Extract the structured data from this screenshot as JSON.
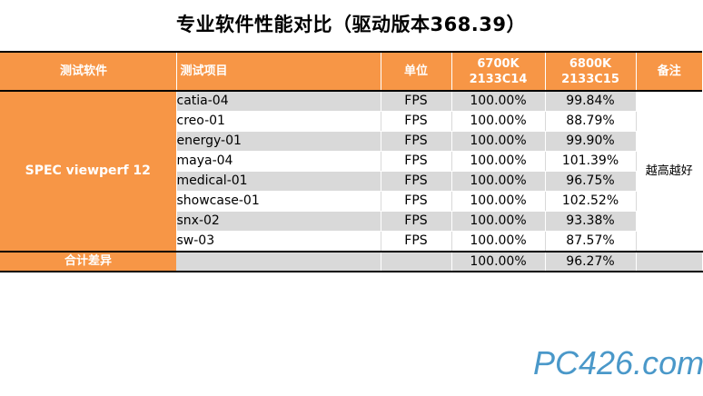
{
  "title": "专业软件性能对比（驱动版本368.39）",
  "table": {
    "headers": {
      "software": "测试软件",
      "item": "测试项目",
      "unit": "单位",
      "col_a_line1": "6700K",
      "col_a_line2": "2133C14",
      "col_b_line1": "6800K",
      "col_b_line2": "2133C15",
      "note": "备注"
    },
    "group_label": "SPEC viewperf 12",
    "note_text": "越高越好",
    "rows": [
      {
        "item": "catia-04",
        "unit": "FPS",
        "a": "100.00%",
        "b": "99.84%"
      },
      {
        "item": "creo-01",
        "unit": "FPS",
        "a": "100.00%",
        "b": "88.79%"
      },
      {
        "item": "energy-01",
        "unit": "FPS",
        "a": "100.00%",
        "b": "99.90%"
      },
      {
        "item": "maya-04",
        "unit": "FPS",
        "a": "100.00%",
        "b": "101.39%"
      },
      {
        "item": "medical-01",
        "unit": "FPS",
        "a": "100.00%",
        "b": "96.75%"
      },
      {
        "item": "showcase-01",
        "unit": "FPS",
        "a": "100.00%",
        "b": "102.52%"
      },
      {
        "item": "snx-02",
        "unit": "FPS",
        "a": "100.00%",
        "b": "93.38%"
      },
      {
        "item": "sw-03",
        "unit": "FPS",
        "a": "100.00%",
        "b": "87.57%"
      }
    ],
    "total": {
      "label": "合计差异",
      "a": "100.00%",
      "b": "96.27%"
    }
  },
  "colors": {
    "header_orange": "#f79646",
    "shade_gray": "#d9d9d9"
  },
  "watermark": "PC426.com"
}
